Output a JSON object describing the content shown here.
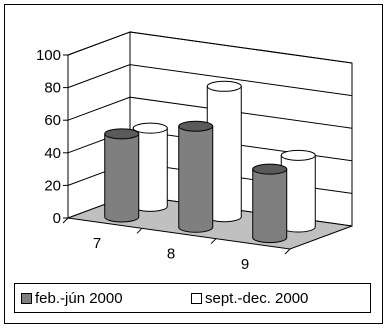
{
  "chart_data": {
    "type": "bar",
    "style": "3d-cylinder",
    "categories": [
      "7",
      "8",
      "9"
    ],
    "series": [
      {
        "name": "feb.-jún 2000",
        "values": [
          51,
          62,
          42
        ],
        "color": "#7f7f7f"
      },
      {
        "name": "sept.-dec. 2000",
        "values": [
          48,
          80,
          44
        ],
        "color": "#ffffff"
      }
    ],
    "yticks": [
      "0",
      "20",
      "40",
      "60",
      "80",
      "100"
    ],
    "ylim": [
      0,
      100
    ],
    "grid": true,
    "legend_position": "bottom"
  }
}
